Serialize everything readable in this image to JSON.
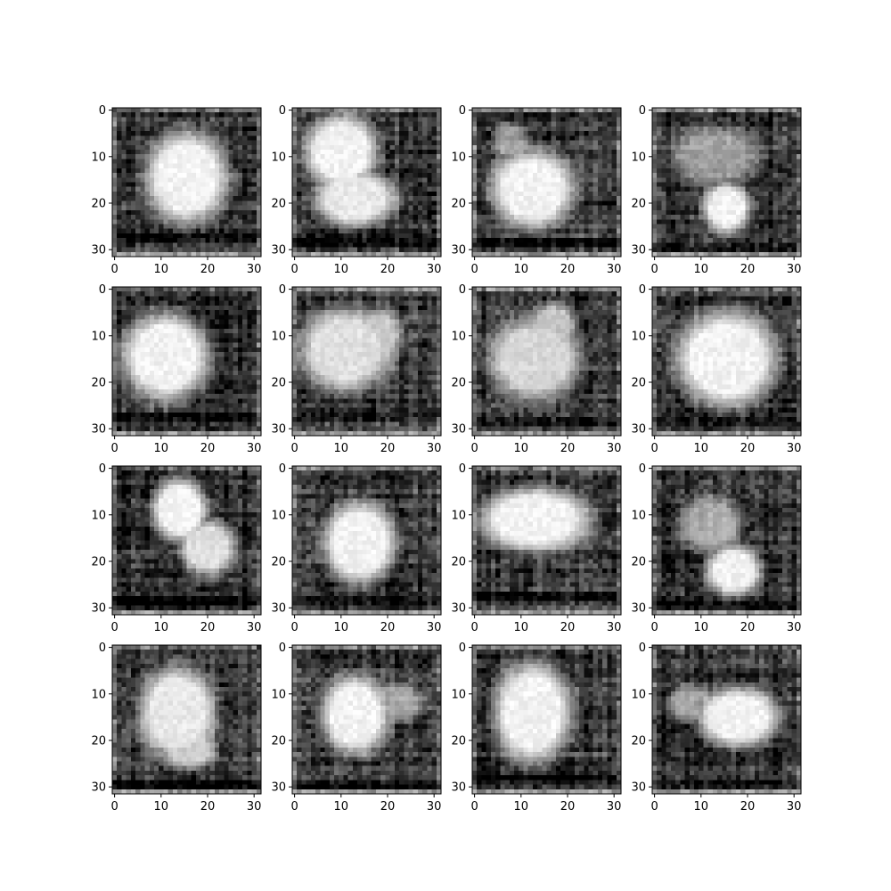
{
  "chart_data": {
    "type": "heatmap",
    "layout": {
      "rows": 4,
      "cols": 4
    },
    "colormap": "gray",
    "image_size": [
      32,
      32
    ],
    "xlim": [
      -0.5,
      31.5
    ],
    "ylim": [
      31.5,
      -0.5
    ],
    "x_ticks": [
      0,
      10,
      20,
      30
    ],
    "y_ticks": [
      0,
      10,
      20,
      30
    ],
    "x_tick_labels": [
      "0",
      "10",
      "20",
      "30"
    ],
    "y_tick_labels": [
      "0",
      "10",
      "20",
      "30"
    ],
    "panels": [
      {
        "blobs": [
          {
            "cx": 15.5,
            "cy": 14.5,
            "rx": 9.0,
            "ry": 10.0,
            "v": 1.0
          }
        ],
        "bg": 0.22,
        "band_row": 27,
        "seed": 11
      },
      {
        "blobs": [
          {
            "cx": 10.0,
            "cy": 9.0,
            "rx": 8.0,
            "ry": 8.0,
            "v": 1.0
          },
          {
            "cx": 13.0,
            "cy": 19.0,
            "rx": 9.0,
            "ry": 6.0,
            "v": 0.95
          }
        ],
        "bg": 0.22,
        "band_row": 28,
        "seed": 23
      },
      {
        "blobs": [
          {
            "cx": 12.5,
            "cy": 17.0,
            "rx": 9.0,
            "ry": 8.5,
            "v": 1.0
          },
          {
            "cx": 8.0,
            "cy": 7.0,
            "rx": 4.0,
            "ry": 4.0,
            "v": 0.55
          }
        ],
        "bg": 0.25,
        "band_row": 28,
        "seed": 37
      },
      {
        "blobs": [
          {
            "cx": 15.5,
            "cy": 21.0,
            "rx": 5.0,
            "ry": 5.5,
            "v": 1.0
          },
          {
            "cx": 13.0,
            "cy": 10.0,
            "rx": 10.0,
            "ry": 6.0,
            "v": 0.55
          }
        ],
        "bg": 0.2,
        "band_row": 29,
        "seed": 41
      },
      {
        "blobs": [
          {
            "cx": 11.0,
            "cy": 14.5,
            "rx": 9.5,
            "ry": 9.5,
            "v": 1.0
          }
        ],
        "bg": 0.22,
        "band_row": 27,
        "seed": 53
      },
      {
        "blobs": [
          {
            "cx": 11.0,
            "cy": 13.0,
            "rx": 10.0,
            "ry": 9.0,
            "v": 0.9
          },
          {
            "cx": 18.0,
            "cy": 10.0,
            "rx": 5.0,
            "ry": 6.0,
            "v": 0.75
          }
        ],
        "bg": 0.22,
        "band_row": 27,
        "seed": 61
      },
      {
        "blobs": [
          {
            "cx": 13.0,
            "cy": 15.0,
            "rx": 10.0,
            "ry": 9.0,
            "v": 0.85
          },
          {
            "cx": 17.0,
            "cy": 8.0,
            "rx": 5.0,
            "ry": 5.0,
            "v": 0.75
          }
        ],
        "bg": 0.22,
        "band_row": 28,
        "seed": 73
      },
      {
        "blobs": [
          {
            "cx": 15.5,
            "cy": 15.0,
            "rx": 11.0,
            "ry": 10.5,
            "v": 1.0
          }
        ],
        "bg": 0.2,
        "band_row": 28,
        "seed": 89
      },
      {
        "blobs": [
          {
            "cx": 14.0,
            "cy": 9.0,
            "rx": 6.0,
            "ry": 7.0,
            "v": 1.0
          },
          {
            "cx": 20.0,
            "cy": 17.0,
            "rx": 6.0,
            "ry": 6.0,
            "v": 0.9
          }
        ],
        "bg": 0.2,
        "band_row": 28,
        "seed": 97
      },
      {
        "blobs": [
          {
            "cx": 14.0,
            "cy": 16.0,
            "rx": 8.0,
            "ry": 9.0,
            "v": 1.0
          }
        ],
        "bg": 0.23,
        "band_row": 28,
        "seed": 101
      },
      {
        "blobs": [
          {
            "cx": 13.0,
            "cy": 11.0,
            "rx": 12.0,
            "ry": 7.0,
            "v": 1.0
          }
        ],
        "bg": 0.22,
        "band_row": 27,
        "seed": 113
      },
      {
        "blobs": [
          {
            "cx": 17.0,
            "cy": 22.0,
            "rx": 6.0,
            "ry": 5.5,
            "v": 1.0
          },
          {
            "cx": 12.0,
            "cy": 12.0,
            "rx": 7.0,
            "ry": 6.0,
            "v": 0.65
          }
        ],
        "bg": 0.2,
        "band_row": 29,
        "seed": 127
      },
      {
        "blobs": [
          {
            "cx": 13.5,
            "cy": 14.0,
            "rx": 8.5,
            "ry": 10.0,
            "v": 0.95
          },
          {
            "cx": 16.0,
            "cy": 22.0,
            "rx": 6.0,
            "ry": 4.0,
            "v": 0.8
          }
        ],
        "bg": 0.22,
        "band_row": 29,
        "seed": 131
      },
      {
        "blobs": [
          {
            "cx": 13.0,
            "cy": 14.5,
            "rx": 7.5,
            "ry": 8.5,
            "v": 1.0
          },
          {
            "cx": 22.0,
            "cy": 12.0,
            "rx": 6.0,
            "ry": 4.0,
            "v": 0.6
          }
        ],
        "bg": 0.23,
        "band_row": 29,
        "seed": 149
      },
      {
        "blobs": [
          {
            "cx": 12.5,
            "cy": 14.0,
            "rx": 8.5,
            "ry": 11.0,
            "v": 1.0
          }
        ],
        "bg": 0.22,
        "band_row": 28,
        "seed": 157
      },
      {
        "blobs": [
          {
            "cx": 18.0,
            "cy": 15.0,
            "rx": 9.0,
            "ry": 6.5,
            "v": 1.0
          },
          {
            "cx": 8.0,
            "cy": 12.0,
            "rx": 5.0,
            "ry": 4.0,
            "v": 0.6
          }
        ],
        "bg": 0.2,
        "band_row": 29,
        "seed": 163
      }
    ]
  }
}
